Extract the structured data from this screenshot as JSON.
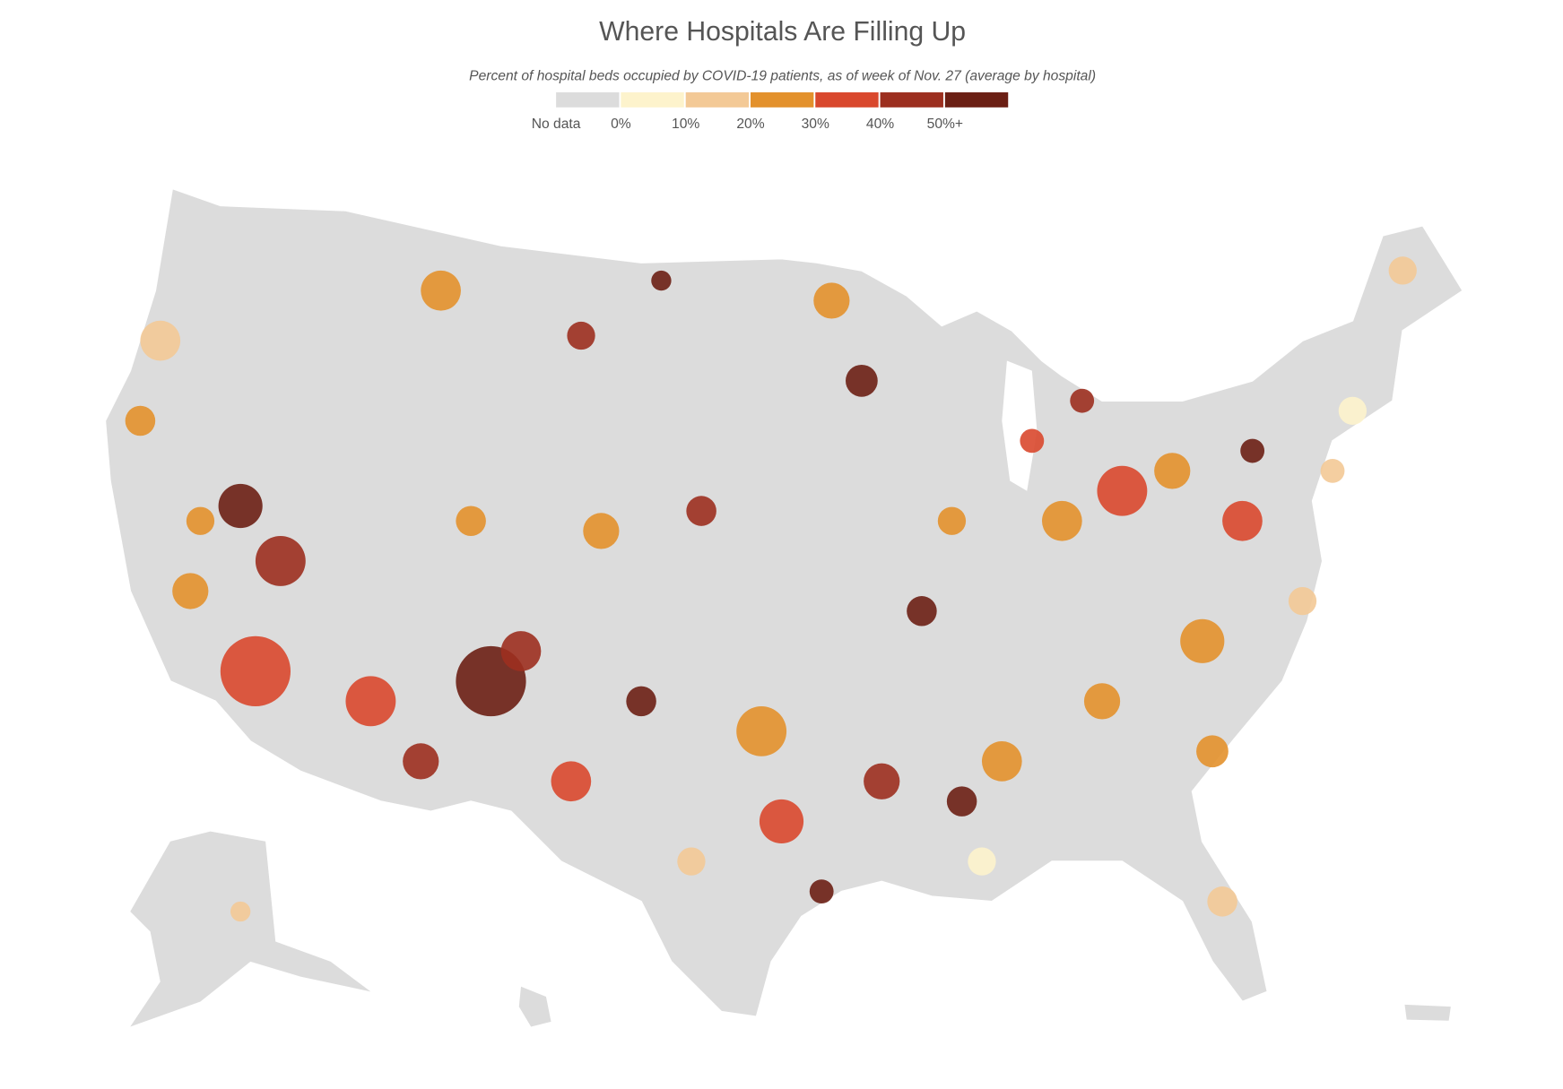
{
  "title": "Where Hospitals Are Filling Up",
  "subtitle": "Percent of hospital beds occupied by COVID-19 patients, as of week of Nov. 27 (average by hospital)",
  "legend": [
    {
      "label": "No data",
      "color": "#dcdcdc"
    },
    {
      "label": "0%",
      "color": "#fdf3cc"
    },
    {
      "label": "10%",
      "color": "#f3c996"
    },
    {
      "label": "20%",
      "color": "#e3912c"
    },
    {
      "label": "30%",
      "color": "#d9482d"
    },
    {
      "label": "40%",
      "color": "#9c2f1f"
    },
    {
      "label": "50%+",
      "color": "#6b1f14"
    }
  ]
}
